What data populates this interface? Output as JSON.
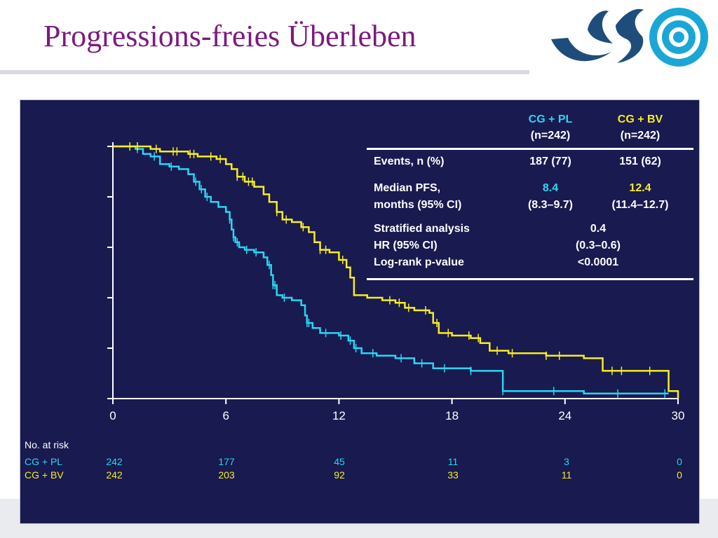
{
  "slide": {
    "title": "Progressions-freies Überleben",
    "colors": {
      "title": "#7b1a7e",
      "panel_bg": "#191a4f",
      "logo_blue": "#1e4d7c",
      "logo_cyan": "#1aa7d6"
    },
    "logo": "organization-logo-swirl-and-concentric-circles"
  },
  "stats_table": {
    "columns": [
      {
        "name": "CG + PL",
        "n": "(n=242)"
      },
      {
        "name": "CG + BV",
        "n": "(n=242)"
      }
    ],
    "events": {
      "label": "Events, n (%)",
      "pl": "187 (77)",
      "bv": "151 (62)"
    },
    "median": {
      "label_line1": "Median PFS,",
      "label_line2": "months (95% CI)",
      "pl_value": "8.4",
      "pl_ci": "(8.3–9.7)",
      "bv_value": "12.4",
      "bv_ci": "(11.4–12.7)"
    },
    "stratified": {
      "label_line1": "Stratified analysis",
      "label_line2": "HR (95% CI)",
      "label_line3": "Log-rank p-value",
      "hr": "0.4",
      "ci": "(0.3–0.6)",
      "p": "<0.0001"
    }
  },
  "risk_table": {
    "title": "No. at risk",
    "rows": [
      {
        "label": "CG + PL",
        "values": [
          "242",
          "177",
          "45",
          "11",
          "3",
          "0"
        ]
      },
      {
        "label": "CG + BV",
        "values": [
          "242",
          "203",
          "92",
          "33",
          "11",
          "0"
        ]
      }
    ]
  },
  "chart_data": {
    "type": "line",
    "subtype": "kaplan-meier-step",
    "x_ticks": [
      0,
      6,
      12,
      18,
      24,
      30
    ],
    "xlim": [
      0,
      30
    ],
    "ylim": [
      0,
      1
    ],
    "y_ticks_unlabeled": [
      0,
      0.2,
      0.4,
      0.6,
      0.8,
      1.0
    ],
    "grid": false,
    "series": [
      {
        "name": "CG + PL",
        "color": "#29d6f2",
        "points": [
          [
            0,
            1.0
          ],
          [
            0.8,
            1.0
          ],
          [
            1.2,
            0.99
          ],
          [
            1.6,
            0.97
          ],
          [
            2.0,
            0.96
          ],
          [
            2.5,
            0.93
          ],
          [
            3.0,
            0.92
          ],
          [
            3.5,
            0.91
          ],
          [
            4.0,
            0.89
          ],
          [
            4.3,
            0.86
          ],
          [
            4.6,
            0.83
          ],
          [
            4.9,
            0.8
          ],
          [
            5.2,
            0.78
          ],
          [
            5.6,
            0.76
          ],
          [
            6.0,
            0.74
          ],
          [
            6.2,
            0.71
          ],
          [
            6.3,
            0.67
          ],
          [
            6.4,
            0.64
          ],
          [
            6.5,
            0.62
          ],
          [
            6.7,
            0.6
          ],
          [
            7.0,
            0.59
          ],
          [
            7.5,
            0.58
          ],
          [
            8.0,
            0.56
          ],
          [
            8.2,
            0.53
          ],
          [
            8.4,
            0.49
          ],
          [
            8.5,
            0.45
          ],
          [
            8.7,
            0.41
          ],
          [
            9.0,
            0.4
          ],
          [
            9.5,
            0.39
          ],
          [
            10.0,
            0.37
          ],
          [
            10.2,
            0.33
          ],
          [
            10.3,
            0.3
          ],
          [
            10.6,
            0.28
          ],
          [
            11.0,
            0.26
          ],
          [
            12.0,
            0.25
          ],
          [
            12.5,
            0.23
          ],
          [
            12.8,
            0.2
          ],
          [
            13.2,
            0.18
          ],
          [
            14.0,
            0.17
          ],
          [
            15.0,
            0.16
          ],
          [
            16.0,
            0.14
          ],
          [
            17.0,
            0.12
          ],
          [
            18.0,
            0.12
          ],
          [
            19.0,
            0.11
          ],
          [
            20.0,
            0.11
          ],
          [
            20.7,
            0.03
          ],
          [
            21.0,
            0.03
          ],
          [
            24.0,
            0.03
          ],
          [
            25.0,
            0.02
          ],
          [
            29.5,
            0.02
          ]
        ],
        "censor_x": [
          1.3,
          2.2,
          3.1,
          4.4,
          4.7,
          5.0,
          6.2,
          6.4,
          6.6,
          7.1,
          7.6,
          8.3,
          8.5,
          8.6,
          9.1,
          10.3,
          10.4,
          11.3,
          12.1,
          12.6,
          12.9,
          13.8,
          15.3,
          16.4,
          17.6,
          19.0,
          20.7,
          23.4,
          26.8,
          29.3
        ]
      },
      {
        "name": "CG + BV",
        "color": "#f7ee1f",
        "points": [
          [
            0,
            1.0
          ],
          [
            1.6,
            1.0
          ],
          [
            2.0,
            0.99
          ],
          [
            2.5,
            0.98
          ],
          [
            4.0,
            0.97
          ],
          [
            4.5,
            0.96
          ],
          [
            5.5,
            0.95
          ],
          [
            6.0,
            0.93
          ],
          [
            6.3,
            0.91
          ],
          [
            6.6,
            0.88
          ],
          [
            7.0,
            0.86
          ],
          [
            7.5,
            0.84
          ],
          [
            8.0,
            0.81
          ],
          [
            8.3,
            0.78
          ],
          [
            8.7,
            0.74
          ],
          [
            9.0,
            0.71
          ],
          [
            9.5,
            0.7
          ],
          [
            10.0,
            0.68
          ],
          [
            10.4,
            0.66
          ],
          [
            10.7,
            0.62
          ],
          [
            11.0,
            0.59
          ],
          [
            11.5,
            0.58
          ],
          [
            12.0,
            0.55
          ],
          [
            12.4,
            0.52
          ],
          [
            12.6,
            0.48
          ],
          [
            12.8,
            0.41
          ],
          [
            13.5,
            0.4
          ],
          [
            14.3,
            0.39
          ],
          [
            15.0,
            0.38
          ],
          [
            15.5,
            0.36
          ],
          [
            16.0,
            0.35
          ],
          [
            16.8,
            0.34
          ],
          [
            17.0,
            0.3
          ],
          [
            17.3,
            0.26
          ],
          [
            18.0,
            0.25
          ],
          [
            19.0,
            0.24
          ],
          [
            19.5,
            0.22
          ],
          [
            20.0,
            0.19
          ],
          [
            21.0,
            0.18
          ],
          [
            23.0,
            0.17
          ],
          [
            25.0,
            0.16
          ],
          [
            26.0,
            0.11
          ],
          [
            29.0,
            0.11
          ],
          [
            29.5,
            0.03
          ],
          [
            30.0,
            0.03
          ],
          [
            30.0,
            0.0
          ]
        ],
        "censor_x": [
          0.9,
          1.3,
          2.3,
          3.2,
          3.4,
          4.1,
          4.3,
          5.2,
          5.7,
          6.6,
          6.9,
          7.2,
          7.4,
          8.7,
          9.2,
          10.1,
          11.0,
          11.3,
          12.2,
          14.7,
          15.2,
          15.7,
          16.6,
          17.2,
          17.8,
          18.9,
          19.4,
          20.4,
          21.2,
          23.0,
          23.7,
          26.5,
          27.0,
          28.5
        ]
      }
    ]
  }
}
